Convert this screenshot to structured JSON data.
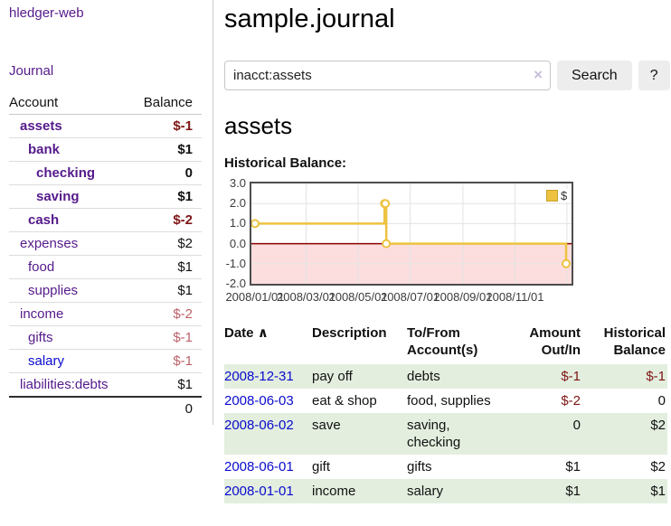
{
  "colors": {
    "link-visited": "#551A8B",
    "link-unvisited": "#0A0ACD",
    "neg-strong": "#7F1515",
    "neg-soft": "#BB6169",
    "row-green": "#E3EEDF",
    "chart-gold": "#EDC240",
    "chart-neg-fill": "#FCDEDE",
    "chart-zero-line": "#8B0000"
  },
  "sidebar": {
    "brand": "hledger-web",
    "nav_journal": "Journal",
    "accounts_table": {
      "headers": {
        "account": "Account",
        "balance": "Balance"
      },
      "rows": [
        {
          "account": "assets",
          "balance": "$-1",
          "depth": 1,
          "bold": true,
          "neg": "strong"
        },
        {
          "account": "bank",
          "balance": "$1",
          "depth": 2,
          "bold": true
        },
        {
          "account": "checking",
          "balance": "0",
          "depth": 3,
          "bold": true
        },
        {
          "account": "saving",
          "balance": "$1",
          "depth": 3,
          "bold": true
        },
        {
          "account": "cash",
          "balance": "$-2",
          "depth": 2,
          "bold": true,
          "neg": "strong"
        },
        {
          "account": "expenses",
          "balance": "$2",
          "depth": 1
        },
        {
          "account": "food",
          "balance": "$1",
          "depth": 2
        },
        {
          "account": "supplies",
          "balance": "$1",
          "depth": 2
        },
        {
          "account": "income",
          "balance": "$-2",
          "depth": 1,
          "neg": "soft"
        },
        {
          "account": "gifts",
          "balance": "$-1",
          "depth": 2,
          "neg": "soft"
        },
        {
          "account": "salary",
          "balance": "$-1",
          "depth": 2,
          "neg": "soft",
          "unvisited": true
        },
        {
          "account": "liabilities:debts",
          "balance": "$1",
          "depth": 1
        }
      ],
      "total": "0"
    }
  },
  "header": {
    "title": "sample.journal"
  },
  "search": {
    "value": "inacct:assets",
    "clear_icon": "×",
    "button_label": "Search",
    "help_label": "?"
  },
  "account_page": {
    "heading": "assets",
    "chart_title": "Historical Balance:"
  },
  "chart_data": {
    "type": "line",
    "step": true,
    "title": "Historical Balance",
    "series": [
      {
        "name": "$",
        "color": "#EDC240",
        "points": [
          [
            "2008-01-01",
            1
          ],
          [
            "2008-06-01",
            2
          ],
          [
            "2008-06-02",
            2
          ],
          [
            "2008-06-03",
            0
          ],
          [
            "2008-12-31",
            -1
          ]
        ]
      }
    ],
    "yticks": [
      "3.0",
      "2.0",
      "1.0",
      "0.0",
      "-1.0",
      "-2.0"
    ],
    "ylim": [
      -2,
      3
    ],
    "xticks": [
      {
        "date": "2008-01-01",
        "label": "2008/01/01"
      },
      {
        "date": "2008-03-01",
        "label": "2008/03/01"
      },
      {
        "date": "2008-05-01",
        "label": "2008/05/01"
      },
      {
        "date": "2008-07-01",
        "label": "2008/07/01"
      },
      {
        "date": "2008-09-01",
        "label": "2008/09/01"
      },
      {
        "date": "2008-11-01",
        "label": "2008/11/01"
      },
      {
        "date": "2009-01-01",
        "label": ""
      }
    ],
    "xlim": [
      "2008-01-01",
      "2009-01-06"
    ],
    "grid": true,
    "negative_region": true,
    "legend": {
      "label": "$",
      "position": "top-right"
    }
  },
  "register_table": {
    "headers": {
      "date": "Date",
      "sort_icon": "∧",
      "description": "Description",
      "accounts_l1": "To/From",
      "accounts_l2": "Account(s)",
      "amount_l1": "Amount",
      "amount_l2": "Out/In",
      "balance_l1": "Historical",
      "balance_l2": "Balance"
    },
    "rows": [
      {
        "date": "2008-12-31",
        "description": "pay off",
        "accounts": "debts",
        "amount": "$-1",
        "balance": "$-1"
      },
      {
        "date": "2008-06-03",
        "description": "eat & shop",
        "accounts": "food, supplies",
        "amount": "$-2",
        "balance": "0"
      },
      {
        "date": "2008-06-02",
        "description": "save",
        "accounts": "saving, checking",
        "amount": "0",
        "balance": "$2"
      },
      {
        "date": "2008-06-01",
        "description": "gift",
        "accounts": "gifts",
        "amount": "$1",
        "balance": "$2"
      },
      {
        "date": "2008-01-01",
        "description": "income",
        "accounts": "salary",
        "amount": "$1",
        "balance": "$1"
      }
    ]
  }
}
